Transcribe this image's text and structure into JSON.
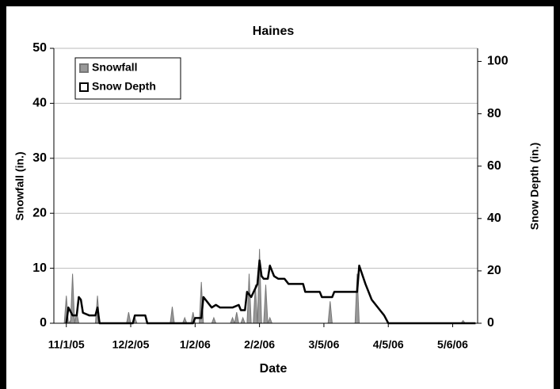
{
  "chart_data": {
    "type": "line",
    "title": "Haines",
    "x_label": "Date",
    "y_label": "Snowfall (in.)",
    "y2_label": "Snow Depth (in.)",
    "xlim": [
      "10/26/05",
      "5/18/06"
    ],
    "xticks": [
      "11/1/05",
      "12/2/05",
      "1/2/06",
      "2/2/06",
      "3/5/06",
      "4/5/06",
      "5/6/06"
    ],
    "ylim": [
      0,
      50
    ],
    "yticks": [
      0,
      10,
      20,
      30,
      40,
      50
    ],
    "y2lim": [
      0,
      105
    ],
    "y2ticks": [
      0,
      20,
      40,
      60,
      80,
      100
    ],
    "grid": true,
    "legend": "upper left",
    "series": [
      {
        "name": "Snowfall",
        "color": "#999999",
        "kind": "spike",
        "x": [
          "11/1/05",
          "11/3/05",
          "11/4/05",
          "11/6/05",
          "11/16/05",
          "12/1/05",
          "12/4/05",
          "12/22/05",
          "12/28/05",
          "1/1/06",
          "1/5/06",
          "1/11/06",
          "1/20/06",
          "1/22/06",
          "1/25/06",
          "1/28/06",
          "1/31/06",
          "2/2/06",
          "2/5/06",
          "2/7/06",
          "3/8/06",
          "3/21/06",
          "5/11/06"
        ],
        "values": [
          5,
          0.5,
          9,
          2,
          5,
          2,
          1,
          3,
          1,
          2,
          7.5,
          1,
          1,
          2,
          1,
          9,
          7,
          13.5,
          7,
          1,
          4,
          9,
          0.5
        ]
      },
      {
        "name": "Snow Depth",
        "color": "#000000",
        "axis": "y2",
        "kind": "line",
        "x": [
          "11/1/05",
          "11/2/05",
          "11/4/05",
          "11/6/05",
          "11/7/05",
          "11/8/05",
          "11/9/05",
          "11/12/05",
          "11/15/05",
          "11/16/05",
          "11/17/05",
          "12/3/05",
          "12/4/05",
          "12/9/05",
          "12/10/05",
          "1/1/06",
          "1/2/06",
          "1/5/06",
          "1/6/06",
          "1/8/06",
          "1/10/06",
          "1/12/06",
          "1/14/06",
          "1/17/06",
          "1/20/06",
          "1/23/06",
          "1/24/06",
          "1/26/06",
          "1/27/06",
          "1/29/06",
          "2/1/06",
          "2/2/06",
          "2/3/06",
          "2/4/06",
          "2/6/06",
          "2/7/06",
          "2/9/06",
          "2/11/06",
          "2/14/06",
          "2/16/06",
          "2/20/06",
          "2/23/06",
          "2/24/06",
          "3/1/06",
          "3/3/06",
          "3/4/06",
          "3/9/06",
          "3/10/06",
          "3/21/06",
          "3/22/06",
          "3/25/06",
          "3/28/06",
          "4/1/06",
          "4/3/06",
          "4/5/06",
          "5/17/06"
        ],
        "values": [
          0,
          6,
          3,
          3,
          10,
          9,
          4,
          3,
          3,
          6,
          0,
          0,
          3,
          3,
          0,
          0,
          2,
          2,
          10,
          8,
          6,
          7,
          6,
          6,
          6,
          7,
          5,
          5,
          12,
          10,
          15,
          24,
          18,
          17,
          17,
          22,
          18,
          17,
          17,
          15,
          15,
          15,
          12,
          12,
          12,
          10,
          10,
          12,
          12,
          22,
          15,
          9,
          5,
          3,
          0,
          0
        ]
      }
    ]
  }
}
